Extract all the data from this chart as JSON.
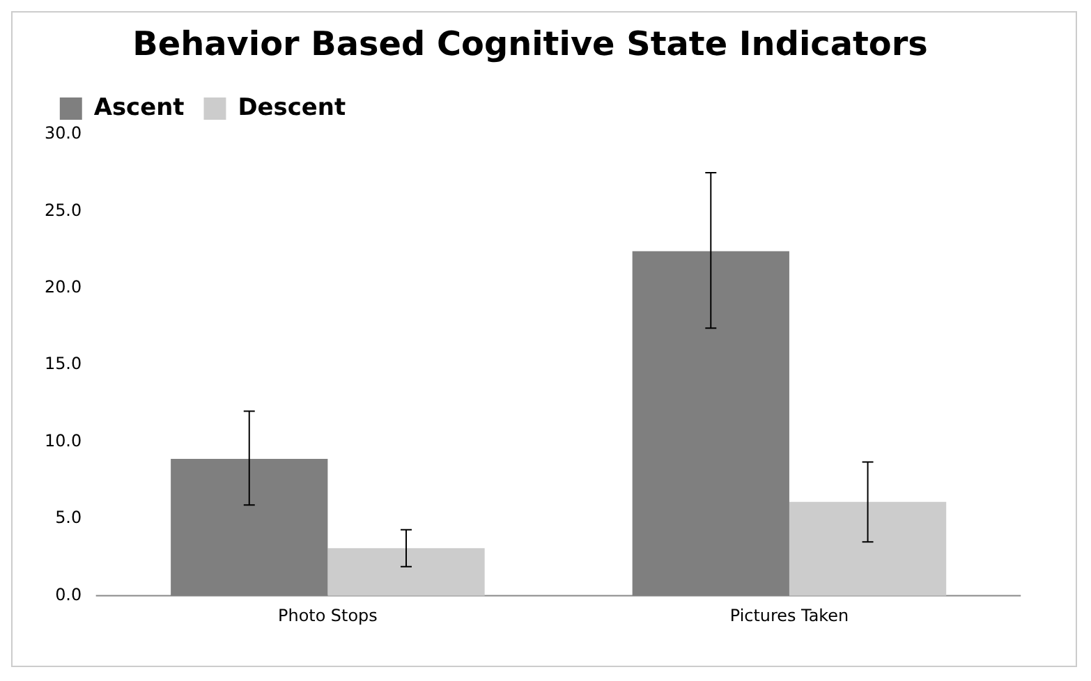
{
  "chart_data": {
    "type": "bar",
    "title": "Behavior Based Cognitive State Indicators",
    "categories": [
      "Photo Stops",
      "Pictures Taken"
    ],
    "series": [
      {
        "name": "Ascent",
        "color": "#7f7f7f",
        "values": [
          8.9,
          22.4
        ],
        "errors": [
          [
            5.9,
            12.0
          ],
          [
            17.4,
            27.5
          ]
        ]
      },
      {
        "name": "Descent",
        "color": "#cccccc",
        "values": [
          3.1,
          6.1
        ],
        "errors": [
          [
            1.9,
            4.3
          ],
          [
            3.5,
            8.7
          ]
        ]
      }
    ],
    "ylim": [
      0,
      30
    ],
    "yticks": [
      {
        "value": 0,
        "label": "0.0"
      },
      {
        "value": 5,
        "label": "5.0"
      },
      {
        "value": 10,
        "label": "10.0"
      },
      {
        "value": 15,
        "label": "15.0"
      },
      {
        "value": 20,
        "label": "20.0"
      },
      {
        "value": 25,
        "label": "25.0"
      },
      {
        "value": 30,
        "label": "30.0"
      }
    ],
    "grid": false,
    "legend": "top left"
  }
}
